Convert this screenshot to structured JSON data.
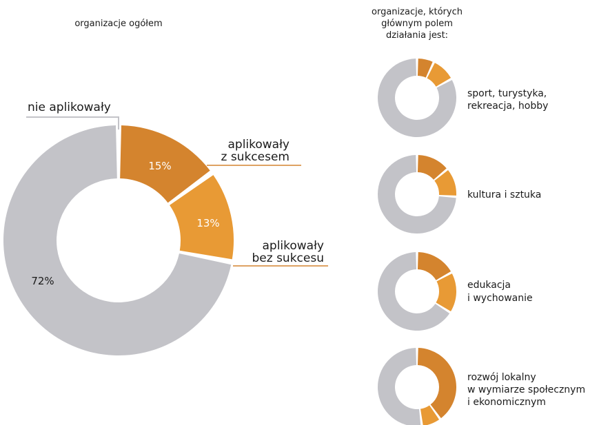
{
  "colors": {
    "success": "#D4842E",
    "no_success": "#E89A35",
    "not_applied": "#C3C3C8",
    "leader_gray": "#C3C3C8",
    "leader_orange": "#D4842E"
  },
  "main": {
    "title": "organizacje ogółem",
    "labels": {
      "not_applied": "nie aplikowały",
      "success_line1": "aplikowały",
      "success_line2": "z sukcesem",
      "no_success_line1": "aplikowały",
      "no_success_line2": "bez sukcesu"
    }
  },
  "side": {
    "title_line1": "organizacje, których",
    "title_line2": "głównym polem",
    "title_line3": "działania jest:"
  },
  "chart_data": [
    {
      "type": "pie",
      "title": "organizacje ogółem",
      "categories": [
        "aplikowały z sukcesem",
        "aplikowały bez sukcesu",
        "nie aplikowały"
      ],
      "values": [
        15,
        13,
        72
      ],
      "value_labels": [
        "15%",
        "13%",
        "72%"
      ],
      "unit": "%"
    },
    {
      "type": "pie",
      "label_lines": [
        "sport, turystyka,",
        "rekreacja, hobby"
      ],
      "categories": [
        "aplikowały z sukcesem",
        "aplikowały bez sukcesu",
        "nie aplikowały"
      ],
      "values": [
        7,
        10,
        83
      ]
    },
    {
      "type": "pie",
      "label_lines": [
        "kultura i sztuka"
      ],
      "categories": [
        "aplikowały z sukcesem",
        "aplikowały bez sukcesu",
        "nie aplikowały"
      ],
      "values": [
        14,
        12,
        74
      ]
    },
    {
      "type": "pie",
      "label_lines": [
        "edukacja",
        "i wychowanie"
      ],
      "categories": [
        "aplikowały z sukcesem",
        "aplikowały bez sukcesu",
        "nie aplikowały"
      ],
      "values": [
        17,
        17,
        66
      ]
    },
    {
      "type": "pie",
      "label_lines": [
        "rozwój lokalny",
        "w wymiarze społecznym",
        "i ekonomicznym"
      ],
      "categories": [
        "aplikowały z sukcesem",
        "aplikowały bez sukcesu",
        "nie aplikowały"
      ],
      "values": [
        40,
        8,
        52
      ]
    }
  ]
}
